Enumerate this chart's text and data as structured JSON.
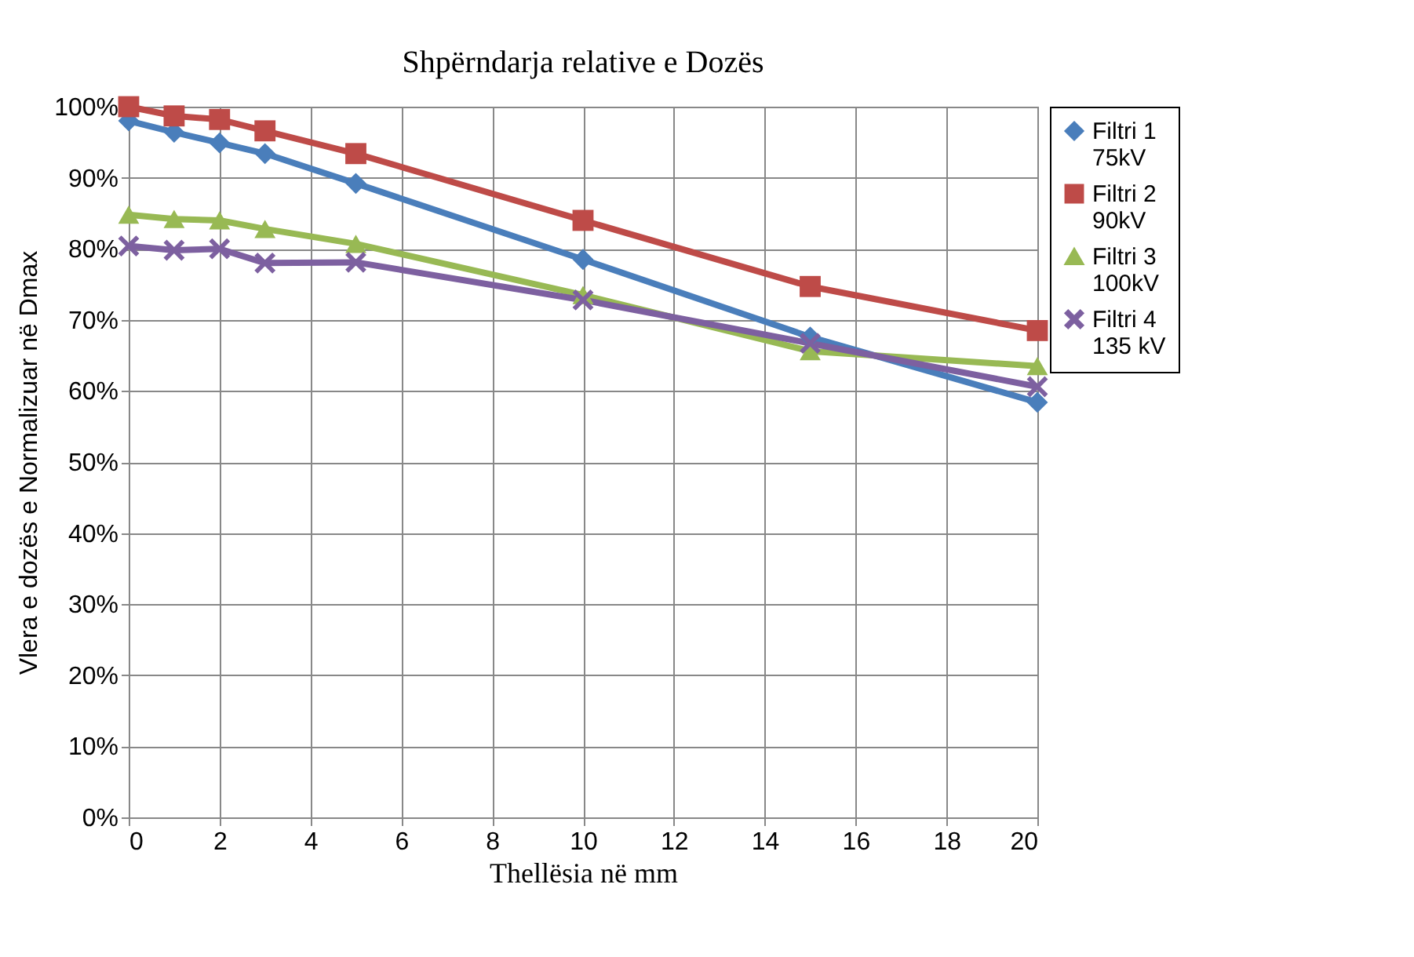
{
  "chart_data": {
    "type": "line",
    "title": "Shpërndarja relative e Dozës",
    "xlabel": "Thellësia në mm",
    "ylabel": "Vlera e dozës e Normalizuar në Dmax",
    "x": [
      0,
      1,
      2,
      3,
      5,
      10,
      15,
      20
    ],
    "series": [
      {
        "name": "Filtri 1\n75kV",
        "color": "#4a7ebb",
        "marker": "diamond",
        "values": [
          0.98,
          0.964,
          0.949,
          0.934,
          0.892,
          0.785,
          0.676,
          0.584
        ]
      },
      {
        "name": "Filtri 2\n90kV",
        "color": "#be4b48",
        "marker": "square",
        "values": [
          1.0,
          0.987,
          0.982,
          0.966,
          0.934,
          0.84,
          0.747,
          0.685
        ]
      },
      {
        "name": "Filtri 3\n100kV",
        "color": "#98b954",
        "marker": "triangle",
        "values": [
          0.848,
          0.842,
          0.84,
          0.828,
          0.807,
          0.735,
          0.656,
          0.635
        ]
      },
      {
        "name": "Filtri 4\n135 kV",
        "color": "#7d60a0",
        "marker": "cross",
        "values": [
          0.804,
          0.798,
          0.8,
          0.78,
          0.781,
          0.728,
          0.667,
          0.606
        ]
      }
    ],
    "xlim": [
      0,
      20
    ],
    "xticks": [
      0,
      2,
      4,
      6,
      8,
      10,
      12,
      14,
      16,
      18,
      20
    ],
    "ylim": [
      0,
      1
    ],
    "yticks": [
      {
        "value": 0,
        "label": "0%"
      },
      {
        "value": 0.1,
        "label": "10%"
      },
      {
        "value": 0.2,
        "label": "20%"
      },
      {
        "value": 0.3,
        "label": "30%"
      },
      {
        "value": 0.4,
        "label": "40%"
      },
      {
        "value": 0.5,
        "label": "50%"
      },
      {
        "value": 0.6,
        "label": "60%"
      },
      {
        "value": 0.7,
        "label": "70%"
      },
      {
        "value": 0.8,
        "label": "80%"
      },
      {
        "value": 0.9,
        "label": "90%"
      },
      {
        "value": 1.0,
        "label": "100%"
      }
    ],
    "grid": true,
    "legend": "right",
    "line_style": "solid"
  }
}
